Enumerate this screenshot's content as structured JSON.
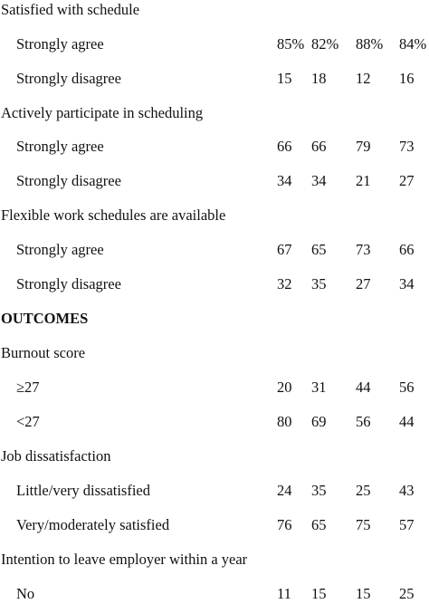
{
  "table": {
    "sections": [
      {
        "label": "Satisfied with schedule",
        "bold": false,
        "rows": [
          {
            "label": "Strongly agree",
            "values": [
              "85%",
              "82%",
              "88%",
              "84%"
            ]
          },
          {
            "label": "Strongly disagree",
            "values": [
              "15",
              "18",
              "12",
              "16"
            ]
          }
        ]
      },
      {
        "label": "Actively participate in scheduling",
        "bold": false,
        "rows": [
          {
            "label": "Strongly agree",
            "values": [
              "66",
              "66",
              "79",
              "73"
            ]
          },
          {
            "label": "Strongly disagree",
            "values": [
              "34",
              "34",
              "21",
              "27"
            ]
          }
        ]
      },
      {
        "label": "Flexible work schedules are available",
        "bold": false,
        "rows": [
          {
            "label": "Strongly agree",
            "values": [
              "67",
              "65",
              "73",
              "66"
            ]
          },
          {
            "label": "Strongly disagree",
            "values": [
              "32",
              "35",
              "27",
              "34"
            ]
          }
        ]
      },
      {
        "label": "OUTCOMES",
        "bold": true,
        "rows": []
      },
      {
        "label": "Burnout score",
        "bold": false,
        "rows": [
          {
            "label": "≥27",
            "values": [
              "20",
              "31",
              "44",
              "56"
            ]
          },
          {
            "label": "<27",
            "values": [
              "80",
              "69",
              "56",
              "44"
            ]
          }
        ]
      },
      {
        "label": "Job dissatisfaction",
        "bold": false,
        "rows": [
          {
            "label": "Little/very dissatisfied",
            "values": [
              "24",
              "35",
              "25",
              "43"
            ]
          },
          {
            "label": "Very/moderately satisfied",
            "values": [
              "76",
              "65",
              "75",
              "57"
            ]
          }
        ]
      },
      {
        "label": "Intention to leave employer within a year",
        "bold": false,
        "rows": [
          {
            "label": "No",
            "values": [
              "11",
              "15",
              "15",
              "25"
            ]
          }
        ]
      }
    ]
  }
}
